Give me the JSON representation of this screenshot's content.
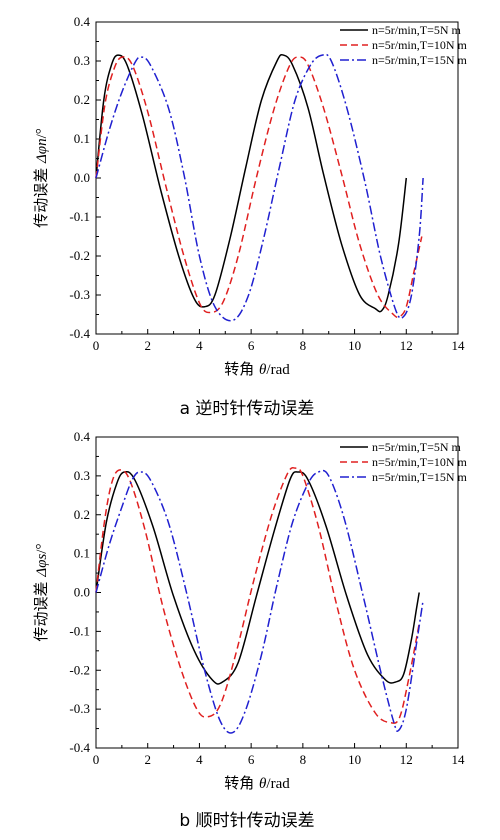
{
  "chart_data": [
    {
      "type": "line",
      "caption": "a  逆时针传动误差",
      "xlabel_prefix": "转角 ",
      "xlabel_symbol": "θ",
      "xlabel_suffix": "/rad",
      "ylabel_prefix": "传动误差 ",
      "ylabel_symbol": "Δφn",
      "ylabel_suffix": "/°",
      "xlim": [
        0,
        14
      ],
      "ylim": [
        -0.4,
        0.4
      ],
      "xticks": [
        "0",
        "2",
        "4",
        "6",
        "8",
        "10",
        "12",
        "14"
      ],
      "yticks": [
        "-0.4",
        "-0.3",
        "-0.2",
        "-0.1",
        "0.0",
        "0.1",
        "0.2",
        "0.3",
        "0.4"
      ],
      "legend_position": "top-right",
      "series": [
        {
          "name": "n=5r/min,T=5N m",
          "color": "#000000",
          "style": "solid",
          "x": [
            0,
            0.3,
            0.6,
            0.85,
            1.2,
            1.8,
            2.5,
            3.2,
            3.8,
            4.2,
            4.6,
            5.2,
            5.8,
            6.4,
            7.0,
            7.25,
            7.6,
            8.2,
            8.8,
            9.5,
            10.2,
            10.8,
            11.05,
            11.3,
            11.7,
            12.0
          ],
          "y": [
            0.0,
            0.2,
            0.29,
            0.315,
            0.29,
            0.16,
            -0.03,
            -0.2,
            -0.31,
            -0.33,
            -0.3,
            -0.15,
            0.03,
            0.2,
            0.3,
            0.315,
            0.29,
            0.18,
            0.01,
            -0.17,
            -0.3,
            -0.335,
            -0.34,
            -0.3,
            -0.17,
            -0.0
          ]
        },
        {
          "name": "n=5r/min,T=10N m",
          "color": "#e02020",
          "style": "dashed",
          "x": [
            0,
            0.35,
            0.7,
            1.0,
            1.4,
            2.0,
            2.7,
            3.4,
            4.0,
            4.4,
            4.9,
            5.5,
            6.2,
            6.9,
            7.5,
            7.85,
            8.2,
            8.8,
            9.5,
            10.2,
            10.9,
            11.5,
            11.75,
            12.0,
            12.3,
            12.6
          ],
          "y": [
            0.0,
            0.19,
            0.28,
            0.31,
            0.29,
            0.17,
            -0.02,
            -0.2,
            -0.32,
            -0.345,
            -0.32,
            -0.2,
            0.0,
            0.18,
            0.29,
            0.31,
            0.29,
            0.18,
            0.01,
            -0.17,
            -0.3,
            -0.35,
            -0.355,
            -0.33,
            -0.24,
            -0.15
          ]
        },
        {
          "name": "n=5r/min,T=15N m",
          "color": "#2020d0",
          "style": "dashdot",
          "x": [
            0,
            0.5,
            1.0,
            1.5,
            1.75,
            2.1,
            2.8,
            3.4,
            4.0,
            4.6,
            5.3,
            5.9,
            6.5,
            7.1,
            7.7,
            8.3,
            8.75,
            9.1,
            9.7,
            10.4,
            11.0,
            11.6,
            11.9,
            12.2,
            12.5,
            12.65
          ],
          "y": [
            0.0,
            0.12,
            0.22,
            0.295,
            0.31,
            0.29,
            0.18,
            0.01,
            -0.2,
            -0.33,
            -0.365,
            -0.3,
            -0.15,
            0.03,
            0.2,
            0.29,
            0.315,
            0.3,
            0.18,
            -0.01,
            -0.2,
            -0.34,
            -0.355,
            -0.3,
            -0.15,
            0.0
          ]
        }
      ]
    },
    {
      "type": "line",
      "caption": "b  顺时针传动误差",
      "xlabel_prefix": "转角 ",
      "xlabel_symbol": "θ",
      "xlabel_suffix": "/rad",
      "ylabel_prefix": "传动误差 ",
      "ylabel_symbol": "Δφs",
      "ylabel_suffix": "/°",
      "xlim": [
        0,
        14
      ],
      "ylim": [
        -0.4,
        0.4
      ],
      "xticks": [
        "0",
        "2",
        "4",
        "6",
        "8",
        "10",
        "12",
        "14"
      ],
      "yticks": [
        "-0.4",
        "-0.3",
        "-0.2",
        "-0.1",
        "0.0",
        "0.1",
        "0.2",
        "0.3",
        "0.4"
      ],
      "legend_position": "top-right",
      "series": [
        {
          "name": "n=5r/min,T=5N m",
          "color": "#000000",
          "style": "solid",
          "x": [
            0,
            0.4,
            0.8,
            1.1,
            1.5,
            2.2,
            3.0,
            3.8,
            4.5,
            4.9,
            5.5,
            6.2,
            6.9,
            7.5,
            7.8,
            8.2,
            8.9,
            9.7,
            10.5,
            11.2,
            11.6,
            11.9,
            12.2,
            12.4,
            12.5
          ],
          "y": [
            0.0,
            0.18,
            0.28,
            0.31,
            0.29,
            0.17,
            -0.01,
            -0.15,
            -0.225,
            -0.23,
            -0.18,
            -0.01,
            0.16,
            0.29,
            0.31,
            0.29,
            0.17,
            -0.01,
            -0.16,
            -0.225,
            -0.23,
            -0.21,
            -0.12,
            -0.04,
            0.0
          ]
        },
        {
          "name": "n=5r/min,T=10N m",
          "color": "#e02020",
          "style": "dashed",
          "x": [
            0,
            0.3,
            0.6,
            0.9,
            1.3,
            1.9,
            2.6,
            3.3,
            3.9,
            4.3,
            4.8,
            5.4,
            6.1,
            6.8,
            7.4,
            7.7,
            8.0,
            8.6,
            9.3,
            10.0,
            10.8,
            11.4,
            11.75,
            12.1,
            12.5
          ],
          "y": [
            0.0,
            0.17,
            0.28,
            0.315,
            0.29,
            0.16,
            -0.04,
            -0.2,
            -0.3,
            -0.32,
            -0.29,
            -0.16,
            0.03,
            0.2,
            0.305,
            0.32,
            0.3,
            0.17,
            -0.03,
            -0.2,
            -0.31,
            -0.335,
            -0.32,
            -0.22,
            -0.08
          ]
        },
        {
          "name": "n=5r/min,T=15N m",
          "color": "#2020d0",
          "style": "dashdot",
          "x": [
            0,
            0.5,
            1.0,
            1.4,
            1.7,
            2.1,
            2.8,
            3.5,
            4.2,
            4.8,
            5.3,
            5.8,
            6.4,
            7.0,
            7.6,
            8.2,
            8.6,
            9.0,
            9.6,
            10.3,
            11.0,
            11.5,
            11.7,
            12.0,
            12.4,
            12.65
          ],
          "y": [
            0.0,
            0.12,
            0.22,
            0.29,
            0.31,
            0.29,
            0.18,
            0.0,
            -0.2,
            -0.33,
            -0.36,
            -0.3,
            -0.16,
            0.02,
            0.18,
            0.28,
            0.31,
            0.3,
            0.19,
            0.0,
            -0.2,
            -0.33,
            -0.355,
            -0.3,
            -0.13,
            -0.02
          ]
        }
      ]
    }
  ]
}
